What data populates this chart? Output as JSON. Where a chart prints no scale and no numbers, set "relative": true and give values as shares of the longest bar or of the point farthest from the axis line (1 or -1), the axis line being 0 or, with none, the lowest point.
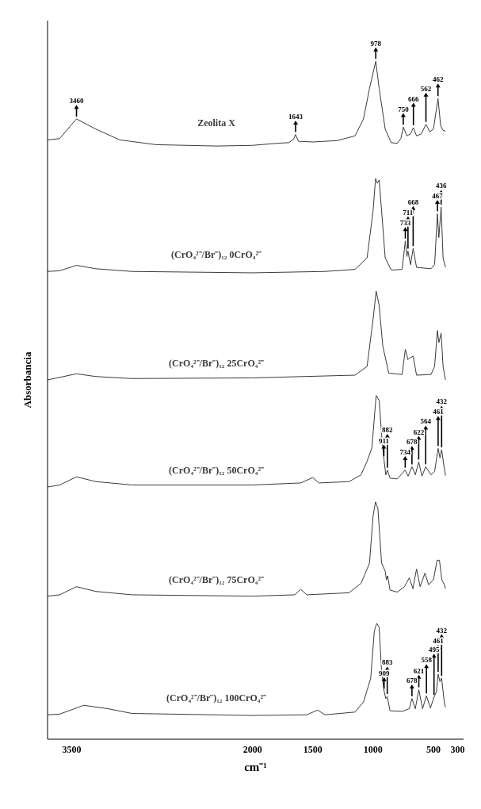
{
  "chart_data": {
    "type": "line",
    "relative": true,
    "xlabel": "cm⁻¹",
    "ylabel": "Absorbancia",
    "xlim": [
      3700,
      250
    ],
    "xticks": [
      3500,
      2000,
      1500,
      1000,
      500,
      300
    ],
    "marker": "none",
    "line_style": "solid",
    "series": [
      {
        "name": "Zeolita X",
        "color": "#3a3a3a",
        "x": [
          3700,
          3600,
          3460,
          3300,
          3100,
          2800,
          2300,
          2000,
          1800,
          1700,
          1660,
          1643,
          1620,
          1500,
          1300,
          1150,
          1080,
          1030,
          978,
          950,
          900,
          850,
          800,
          770,
          750,
          720,
          690,
          666,
          640,
          600,
          562,
          530,
          500,
          462,
          440,
          420,
          400
        ],
        "values": [
          0.884,
          0.886,
          0.915,
          0.9,
          0.884,
          0.877,
          0.875,
          0.876,
          0.879,
          0.88,
          0.885,
          0.892,
          0.882,
          0.881,
          0.883,
          0.89,
          0.915,
          0.96,
          1.0,
          0.96,
          0.9,
          0.88,
          0.879,
          0.886,
          0.903,
          0.89,
          0.893,
          0.902,
          0.89,
          0.893,
          0.907,
          0.896,
          0.9,
          0.945,
          0.905,
          0.898,
          0.897
        ]
      },
      {
        "name": "(CrO₄²⁻/Br⁻)₁₂ 0CrO₄²⁻",
        "color": "#3a3a3a",
        "x": [
          3700,
          3600,
          3460,
          3300,
          3000,
          2000,
          1400,
          1150,
          1050,
          1000,
          980,
          965,
          950,
          930,
          900,
          850,
          760,
          733,
          720,
          711,
          690,
          668,
          640,
          520,
          490,
          467,
          455,
          436,
          420,
          400
        ],
        "values": [
          0.69,
          0.691,
          0.699,
          0.694,
          0.69,
          0.688,
          0.69,
          0.693,
          0.71,
          0.78,
          0.827,
          0.82,
          0.825,
          0.78,
          0.71,
          0.692,
          0.693,
          0.735,
          0.712,
          0.72,
          0.7,
          0.724,
          0.696,
          0.694,
          0.7,
          0.775,
          0.74,
          0.785,
          0.71,
          0.696
        ]
      },
      {
        "name": "(CrO₄²⁻/Br⁻)₁₂ 25CrO₄²⁻",
        "color": "#3a3a3a",
        "x": [
          3700,
          3460,
          3300,
          3000,
          2000,
          1150,
          1050,
          1000,
          975,
          950,
          920,
          870,
          760,
          733,
          711,
          700,
          668,
          640,
          520,
          490,
          467,
          455,
          436,
          420,
          400
        ],
        "values": [
          0.53,
          0.539,
          0.535,
          0.532,
          0.533,
          0.537,
          0.55,
          0.62,
          0.661,
          0.64,
          0.58,
          0.54,
          0.538,
          0.575,
          0.56,
          0.562,
          0.565,
          0.537,
          0.538,
          0.55,
          0.603,
          0.585,
          0.599,
          0.55,
          0.53
        ]
      },
      {
        "name": "(CrO₄²⁻/Br⁻)₁₂ 50CrO₄²⁻",
        "color": "#3a3a3a",
        "x": [
          3700,
          3600,
          3460,
          3300,
          3000,
          2000,
          1600,
          1500,
          1450,
          1200,
          1100,
          1050,
          1010,
          975,
          950,
          930,
          911,
          895,
          882,
          860,
          800,
          734,
          710,
          678,
          650,
          622,
          595,
          564,
          520,
          490,
          461,
          446,
          432,
          410,
          400
        ],
        "values": [
          0.372,
          0.375,
          0.387,
          0.38,
          0.375,
          0.375,
          0.378,
          0.386,
          0.378,
          0.38,
          0.39,
          0.41,
          0.43,
          0.507,
          0.5,
          0.45,
          0.414,
          0.39,
          0.397,
          0.385,
          0.384,
          0.397,
          0.388,
          0.402,
          0.39,
          0.409,
          0.388,
          0.402,
          0.39,
          0.395,
          0.429,
          0.415,
          0.427,
          0.4,
          0.389
        ]
      },
      {
        "name": "(CrO₄²⁻/Br⁻)₁₂ 75CrO₄²⁻",
        "color": "#3a3a3a",
        "x": [
          3700,
          3600,
          3460,
          3300,
          3000,
          2000,
          1650,
          1600,
          1550,
          1200,
          1100,
          1050,
          1030,
          1000,
          980,
          960,
          930,
          900,
          890,
          880,
          860,
          800,
          740,
          700,
          670,
          640,
          610,
          570,
          540,
          500,
          470,
          450,
          430,
          410,
          400
        ],
        "values": [
          0.211,
          0.213,
          0.225,
          0.218,
          0.213,
          0.211,
          0.213,
          0.221,
          0.213,
          0.216,
          0.23,
          0.251,
          0.26,
          0.33,
          0.35,
          0.34,
          0.26,
          0.248,
          0.235,
          0.241,
          0.22,
          0.217,
          0.225,
          0.238,
          0.222,
          0.251,
          0.225,
          0.245,
          0.228,
          0.235,
          0.264,
          0.264,
          0.235,
          0.228,
          0.222
        ]
      },
      {
        "name": "(CrO₄²⁻/Br⁻)₁₂ 100CrO₄²⁻",
        "color": "#3a3a3a",
        "x": [
          3700,
          3600,
          3400,
          3200,
          3000,
          2000,
          1550,
          1460,
          1400,
          1150,
          1080,
          1050,
          1020,
          990,
          970,
          950,
          930,
          909,
          895,
          883,
          860,
          760,
          700,
          678,
          650,
          621,
          590,
          558,
          525,
          495,
          475,
          461,
          446,
          432,
          410,
          400
        ],
        "values": [
          0.036,
          0.037,
          0.05,
          0.045,
          0.038,
          0.035,
          0.036,
          0.043,
          0.036,
          0.04,
          0.055,
          0.072,
          0.09,
          0.16,
          0.171,
          0.165,
          0.1,
          0.071,
          0.06,
          0.063,
          0.042,
          0.041,
          0.045,
          0.06,
          0.045,
          0.073,
          0.045,
          0.064,
          0.046,
          0.062,
          0.07,
          0.096,
          0.085,
          0.09,
          0.055,
          0.047
        ]
      }
    ],
    "annotations": [
      {
        "text": "3460",
        "x": 3460,
        "y": 0.915
      },
      {
        "text": "1643",
        "x": 1643,
        "y": 0.892
      },
      {
        "text": "978",
        "x": 978,
        "y": 1.0
      },
      {
        "text": "750",
        "x": 750,
        "y": 0.903
      },
      {
        "text": "666",
        "x": 666,
        "y": 0.902
      },
      {
        "text": "562",
        "x": 562,
        "y": 0.907
      },
      {
        "text": "462",
        "x": 462,
        "y": 0.945
      },
      {
        "text": "733",
        "x": 733,
        "y": 0.735
      },
      {
        "text": "711",
        "x": 711,
        "y": 0.72
      },
      {
        "text": "668",
        "x": 668,
        "y": 0.724
      },
      {
        "text": "467",
        "x": 467,
        "y": 0.775
      },
      {
        "text": "436",
        "x": 436,
        "y": 0.785
      },
      {
        "text": "911",
        "x": 911,
        "y": 0.414
      },
      {
        "text": "882",
        "x": 882,
        "y": 0.397
      },
      {
        "text": "734",
        "x": 734,
        "y": 0.397
      },
      {
        "text": "678",
        "x": 678,
        "y": 0.402
      },
      {
        "text": "622",
        "x": 622,
        "y": 0.409
      },
      {
        "text": "564",
        "x": 564,
        "y": 0.402
      },
      {
        "text": "461",
        "x": 461,
        "y": 0.429
      },
      {
        "text": "432",
        "x": 432,
        "y": 0.427
      },
      {
        "text": "909",
        "x": 909,
        "y": 0.071
      },
      {
        "text": "883",
        "x": 883,
        "y": 0.063
      },
      {
        "text": "678",
        "x": 678,
        "y": 0.06
      },
      {
        "text": "621",
        "x": 621,
        "y": 0.073
      },
      {
        "text": "558",
        "x": 558,
        "y": 0.064
      },
      {
        "text": "495",
        "x": 495,
        "y": 0.062
      },
      {
        "text": "461",
        "x": 461,
        "y": 0.096
      },
      {
        "text": "432",
        "x": 432,
        "y": 0.09
      }
    ]
  }
}
